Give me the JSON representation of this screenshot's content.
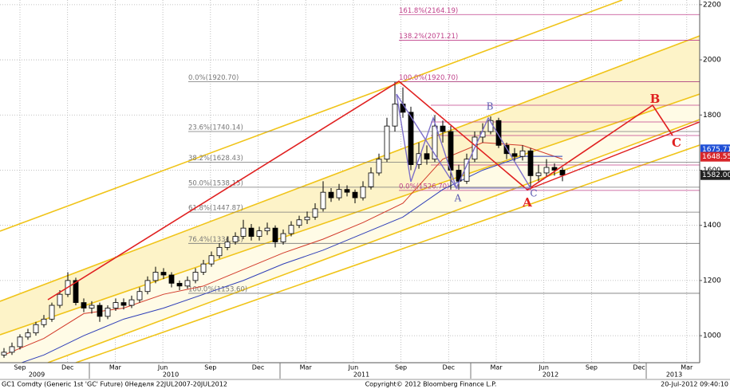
{
  "chart_data": {
    "type": "candlestick",
    "ylim": [
      902,
      2217
    ],
    "yticks": [
      1000,
      1200,
      1400,
      1600,
      1800,
      2000,
      2200
    ],
    "grid": true,
    "up_color": "#ffffff",
    "down_color": "#000000",
    "open": [
      930,
      940,
      960,
      995,
      1010,
      1040,
      1060,
      1110,
      1150,
      1200,
      1120,
      1100,
      1110,
      1070,
      1100,
      1120,
      1110,
      1130,
      1160,
      1200,
      1230,
      1220,
      1190,
      1180,
      1200,
      1230,
      1260,
      1290,
      1320,
      1340,
      1360,
      1390,
      1360,
      1380,
      1390,
      1340,
      1370,
      1400,
      1420,
      1430,
      1460,
      1520,
      1500,
      1530,
      1520,
      1500,
      1540,
      1590,
      1640,
      1760,
      1840,
      1810,
      1620,
      1660,
      1640,
      1760,
      1740,
      1600,
      1560,
      1640,
      1720,
      1740,
      1780,
      1690,
      1660,
      1650,
      1670,
      1580,
      1590,
      1610,
      1600
    ],
    "high": [
      955,
      975,
      1005,
      1025,
      1050,
      1075,
      1120,
      1165,
      1230,
      1210,
      1135,
      1125,
      1120,
      1110,
      1135,
      1135,
      1145,
      1175,
      1215,
      1250,
      1245,
      1230,
      1200,
      1215,
      1245,
      1275,
      1305,
      1335,
      1360,
      1375,
      1420,
      1405,
      1395,
      1410,
      1400,
      1385,
      1415,
      1435,
      1450,
      1480,
      1560,
      1535,
      1550,
      1545,
      1530,
      1560,
      1610,
      1660,
      1790,
      1920,
      1900,
      1830,
      1700,
      1690,
      1800,
      1780,
      1760,
      1620,
      1660,
      1740,
      1770,
      1795,
      1790,
      1700,
      1680,
      1690,
      1680,
      1620,
      1640,
      1625,
      1610
    ],
    "low": [
      920,
      930,
      950,
      985,
      1000,
      1030,
      1050,
      1100,
      1140,
      1110,
      1085,
      1080,
      1050,
      1060,
      1090,
      1095,
      1100,
      1120,
      1150,
      1190,
      1205,
      1175,
      1165,
      1170,
      1190,
      1220,
      1250,
      1280,
      1310,
      1330,
      1350,
      1345,
      1345,
      1365,
      1320,
      1330,
      1360,
      1390,
      1405,
      1420,
      1450,
      1485,
      1490,
      1505,
      1480,
      1490,
      1530,
      1580,
      1630,
      1740,
      1790,
      1600,
      1605,
      1620,
      1630,
      1700,
      1530,
      1530,
      1550,
      1630,
      1700,
      1730,
      1680,
      1640,
      1630,
      1635,
      1530,
      1560,
      1575,
      1580,
      1560
    ],
    "close": [
      940,
      960,
      995,
      1010,
      1040,
      1060,
      1110,
      1150,
      1200,
      1120,
      1100,
      1110,
      1070,
      1100,
      1120,
      1110,
      1130,
      1160,
      1200,
      1230,
      1220,
      1190,
      1180,
      1200,
      1230,
      1260,
      1290,
      1320,
      1340,
      1360,
      1390,
      1360,
      1380,
      1390,
      1340,
      1370,
      1400,
      1420,
      1430,
      1460,
      1520,
      1500,
      1530,
      1520,
      1500,
      1540,
      1590,
      1640,
      1760,
      1840,
      1810,
      1620,
      1660,
      1640,
      1760,
      1740,
      1600,
      1560,
      1640,
      1720,
      1740,
      1780,
      1690,
      1660,
      1650,
      1670,
      1580,
      1590,
      1610,
      1600,
      1582
    ],
    "moving_averages": [
      {
        "color": "#d23a2a",
        "values": [
          930,
          990,
          1080,
          1100,
          1150,
          1180,
          1240,
          1300,
          1350,
          1410,
          1480,
          1640,
          1700,
          1690,
          1640
        ]
      },
      {
        "color": "#2f3fb8",
        "values": [
          880,
          930,
          1000,
          1060,
          1100,
          1150,
          1200,
          1260,
          1310,
          1370,
          1430,
          1530,
          1600,
          1650,
          1650
        ]
      }
    ],
    "months": [
      "Sep",
      "Dec",
      "Mar",
      "Jun",
      "Sep",
      "Dec",
      "Mar",
      "Jun",
      "Sep",
      "Dec",
      "Mar",
      "Jun",
      "Sep",
      "Dec",
      "Mar"
    ],
    "years": [
      "2009",
      "2010",
      "2011",
      "2012",
      "2013"
    ],
    "fib_retracement": [
      {
        "value": 1920.7,
        "label": "0.0%(1920.70)"
      },
      {
        "value": 1740.14,
        "label": "23.6%(1740.14)"
      },
      {
        "value": 1628.43,
        "label": "38.2%(1628.43)"
      },
      {
        "value": 1538.15,
        "label": "50.0%(1538.15)"
      },
      {
        "value": 1447.87,
        "label": "61.8%(1447.87)"
      },
      {
        "value": 1334.64,
        "label": "76.4%(1334.64)"
      },
      {
        "value": 1153.6,
        "label": "100.0%(1153.60)"
      }
    ],
    "fib_extension": [
      {
        "value": 2164.19,
        "label": "161.8%(2164.19)"
      },
      {
        "value": 2071.21,
        "label": "138.2%(2071.21)"
      },
      {
        "value": 1920.7,
        "label": "100.0%(1920.70)"
      },
      {
        "value": 1526.7,
        "label": "0.0%(1526.70)"
      }
    ],
    "price_tags": [
      {
        "value": 1675.71,
        "label": "1675.71",
        "color": "#1f4fd6"
      },
      {
        "value": 1648.55,
        "label": "1648.55",
        "color": "#d8262a"
      },
      {
        "value": 1582,
        "label": "1582.00",
        "color": "#222222"
      }
    ],
    "wave_labels": [
      "A",
      "B",
      "C",
      "A",
      "B",
      "C"
    ],
    "footer": {
      "left": "GC1 Comdty (Generic 1st 'GC' Future) 0Неделя 22JUL2007-20JUL2012",
      "center": "Copyright© 2012 Bloomberg Finance L.P.",
      "right": "20-Jul-2012 09:40:10"
    }
  }
}
